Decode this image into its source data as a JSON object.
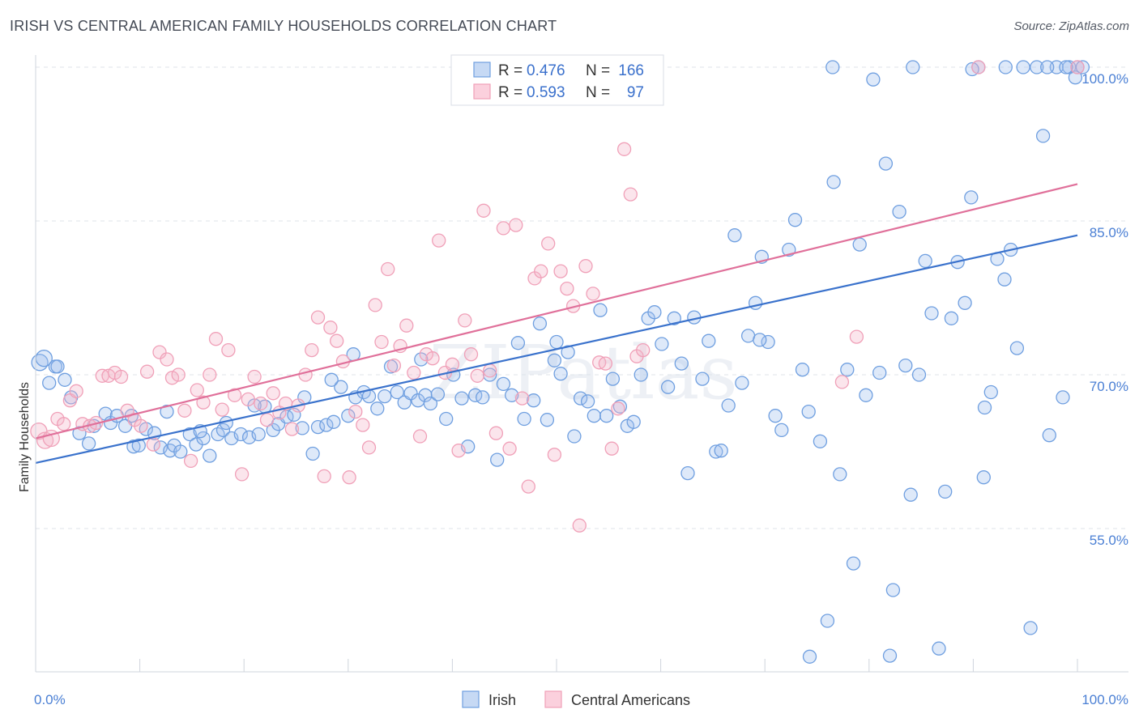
{
  "title": "IRISH VS CENTRAL AMERICAN FAMILY HOUSEHOLDS CORRELATION CHART",
  "source": "Source: ZipAtlas.com",
  "watermark": "ZIPatlas",
  "chart_data": {
    "type": "scatter",
    "ylabel": "Family Households",
    "xlim": [
      0,
      100
    ],
    "ylim": [
      40,
      102
    ],
    "x_ticks": [
      "0.0%",
      "100.0%"
    ],
    "y_ticks": [
      {
        "value": 100,
        "label": "100.0%"
      },
      {
        "value": 85,
        "label": "85.0%"
      },
      {
        "value": 70,
        "label": "70.0%"
      },
      {
        "value": 55,
        "label": "55.0%"
      }
    ],
    "legend_rows": [
      {
        "r_label": "R =",
        "r": "0.476",
        "n_label": "N =",
        "n": "166"
      },
      {
        "r_label": "R =",
        "r": "0.593",
        "n_label": "N =",
        "n": "97"
      }
    ],
    "series": [
      {
        "name": "Irish",
        "color": "#6f9fe0",
        "line_color": "#3a72cc",
        "r": 0.476,
        "n": 166,
        "trend": {
          "x": [
            0,
            100
          ],
          "y": [
            61.4,
            83.6
          ]
        },
        "points": [
          [
            0.4,
            71.2
          ],
          [
            0.8,
            71.6
          ],
          [
            1.3,
            69.2
          ],
          [
            1.9,
            70.8
          ],
          [
            2.1,
            70.8
          ],
          [
            2.8,
            69.5
          ],
          [
            3.4,
            67.8
          ],
          [
            4.2,
            64.3
          ],
          [
            5.1,
            63.3
          ],
          [
            5.6,
            65.0
          ],
          [
            6.7,
            66.2
          ],
          [
            7.2,
            65.3
          ],
          [
            7.8,
            66.0
          ],
          [
            8.6,
            65.0
          ],
          [
            9.4,
            63.0
          ],
          [
            9.9,
            63.1
          ],
          [
            10.6,
            64.7
          ],
          [
            11.4,
            64.3
          ],
          [
            12.0,
            62.9
          ],
          [
            12.9,
            62.6
          ],
          [
            13.3,
            63.1
          ],
          [
            13.9,
            62.5
          ],
          [
            14.8,
            64.2
          ],
          [
            15.4,
            63.2
          ],
          [
            16.1,
            63.8
          ],
          [
            16.7,
            62.1
          ],
          [
            17.5,
            64.2
          ],
          [
            18.0,
            64.6
          ],
          [
            18.8,
            63.8
          ],
          [
            19.7,
            64.2
          ],
          [
            20.5,
            63.9
          ],
          [
            21.4,
            64.2
          ],
          [
            22.0,
            66.9
          ],
          [
            22.8,
            64.6
          ],
          [
            23.3,
            65.2
          ],
          [
            24.1,
            65.9
          ],
          [
            24.8,
            66.1
          ],
          [
            25.6,
            64.8
          ],
          [
            26.6,
            62.3
          ],
          [
            27.1,
            64.9
          ],
          [
            27.9,
            65.1
          ],
          [
            28.6,
            65.4
          ],
          [
            29.3,
            68.8
          ],
          [
            30.0,
            66.0
          ],
          [
            30.7,
            67.8
          ],
          [
            31.5,
            68.3
          ],
          [
            32.0,
            67.9
          ],
          [
            32.8,
            66.7
          ],
          [
            33.5,
            67.9
          ],
          [
            34.1,
            70.8
          ],
          [
            34.7,
            68.3
          ],
          [
            35.4,
            67.3
          ],
          [
            36.0,
            68.2
          ],
          [
            36.7,
            67.5
          ],
          [
            37.4,
            68.0
          ],
          [
            37.9,
            67.2
          ],
          [
            38.6,
            68.1
          ],
          [
            39.4,
            65.7
          ],
          [
            40.1,
            70.0
          ],
          [
            40.9,
            67.7
          ],
          [
            41.5,
            63.0
          ],
          [
            42.2,
            68.0
          ],
          [
            42.9,
            67.8
          ],
          [
            43.6,
            70.0
          ],
          [
            44.3,
            61.7
          ],
          [
            44.9,
            69.1
          ],
          [
            45.7,
            68.0
          ],
          [
            46.3,
            73.1
          ],
          [
            46.9,
            65.7
          ],
          [
            47.8,
            67.5
          ],
          [
            48.4,
            75.0
          ],
          [
            49.1,
            65.6
          ],
          [
            49.8,
            71.4
          ],
          [
            50.4,
            70.1
          ],
          [
            51.1,
            72.2
          ],
          [
            51.7,
            64.0
          ],
          [
            52.3,
            67.7
          ],
          [
            53.0,
            67.4
          ],
          [
            53.6,
            66.0
          ],
          [
            54.2,
            76.3
          ],
          [
            54.8,
            66.0
          ],
          [
            55.4,
            69.6
          ],
          [
            56.1,
            66.9
          ],
          [
            56.8,
            65.0
          ],
          [
            57.4,
            65.4
          ],
          [
            58.1,
            70.0
          ],
          [
            58.8,
            75.5
          ],
          [
            59.4,
            76.1
          ],
          [
            60.1,
            73.0
          ],
          [
            60.7,
            68.8
          ],
          [
            61.3,
            75.5
          ],
          [
            62.0,
            71.1
          ],
          [
            62.6,
            60.4
          ],
          [
            63.2,
            75.6
          ],
          [
            64.0,
            69.6
          ],
          [
            64.6,
            73.3
          ],
          [
            65.3,
            62.5
          ],
          [
            65.8,
            62.6
          ],
          [
            66.5,
            67.0
          ],
          [
            67.1,
            83.6
          ],
          [
            67.8,
            69.2
          ],
          [
            68.4,
            73.8
          ],
          [
            69.1,
            77.0
          ],
          [
            69.7,
            81.5
          ],
          [
            70.3,
            73.2
          ],
          [
            71.0,
            66.0
          ],
          [
            71.6,
            64.6
          ],
          [
            72.3,
            82.2
          ],
          [
            72.9,
            85.1
          ],
          [
            73.6,
            70.5
          ],
          [
            74.2,
            66.4
          ],
          [
            75.3,
            63.5
          ],
          [
            76.0,
            46.0
          ],
          [
            76.6,
            88.8
          ],
          [
            77.2,
            60.3
          ],
          [
            77.9,
            70.5
          ],
          [
            78.5,
            51.6
          ],
          [
            79.1,
            82.7
          ],
          [
            79.7,
            68.0
          ],
          [
            80.4,
            98.8
          ],
          [
            81.0,
            70.2
          ],
          [
            81.6,
            90.6
          ],
          [
            82.3,
            49.0
          ],
          [
            82.9,
            85.9
          ],
          [
            83.5,
            70.9
          ],
          [
            84.2,
            100.0
          ],
          [
            84.8,
            70.0
          ],
          [
            85.4,
            81.1
          ],
          [
            86.0,
            76.0
          ],
          [
            86.7,
            43.3
          ],
          [
            87.3,
            58.6
          ],
          [
            87.9,
            75.5
          ],
          [
            88.5,
            81.0
          ],
          [
            89.2,
            77.0
          ],
          [
            89.8,
            87.3
          ],
          [
            90.5,
            100.0
          ],
          [
            91.1,
            66.8
          ],
          [
            91.7,
            68.3
          ],
          [
            92.3,
            81.3
          ],
          [
            93.0,
            79.3
          ],
          [
            93.6,
            82.2
          ],
          [
            94.2,
            72.6
          ],
          [
            94.8,
            100.0
          ],
          [
            95.5,
            45.3
          ],
          [
            96.1,
            100.0
          ],
          [
            96.7,
            93.3
          ],
          [
            97.3,
            64.1
          ],
          [
            98.0,
            100.0
          ],
          [
            98.6,
            67.8
          ],
          [
            99.2,
            100.0
          ],
          [
            99.8,
            99.0
          ],
          [
            76.5,
            100.0
          ],
          [
            100.0,
            100.0
          ],
          [
            89.9,
            99.8
          ],
          [
            93.1,
            100.0
          ],
          [
            97.1,
            100.0
          ],
          [
            98.9,
            100.0
          ],
          [
            100.5,
            100.0
          ],
          [
            74.3,
            42.5
          ],
          [
            82.0,
            42.6
          ],
          [
            84.0,
            58.3
          ],
          [
            91.0,
            60.0
          ],
          [
            69.5,
            73.4
          ],
          [
            50.0,
            73.2
          ],
          [
            37.0,
            71.5
          ],
          [
            30.5,
            72.0
          ],
          [
            28.4,
            69.5
          ],
          [
            25.8,
            67.8
          ],
          [
            21.0,
            67.0
          ],
          [
            18.3,
            65.3
          ],
          [
            15.8,
            64.5
          ],
          [
            12.6,
            66.4
          ],
          [
            9.2,
            66.0
          ]
        ]
      },
      {
        "name": "Central Americans",
        "color": "#f0a0b8",
        "line_color": "#e0709a",
        "r": 0.593,
        "n": 97,
        "trend": {
          "x": [
            0,
            100
          ],
          "y": [
            63.8,
            88.6
          ]
        },
        "points": [
          [
            0.3,
            64.5
          ],
          [
            0.9,
            63.6
          ],
          [
            1.5,
            63.8
          ],
          [
            2.1,
            65.7
          ],
          [
            2.7,
            65.2
          ],
          [
            3.3,
            67.5
          ],
          [
            3.9,
            68.4
          ],
          [
            4.5,
            65.2
          ],
          [
            5.2,
            65.0
          ],
          [
            5.8,
            65.3
          ],
          [
            6.4,
            69.9
          ],
          [
            7.0,
            69.9
          ],
          [
            7.6,
            70.2
          ],
          [
            8.2,
            69.8
          ],
          [
            8.8,
            66.5
          ],
          [
            9.5,
            65.6
          ],
          [
            10.1,
            65.0
          ],
          [
            10.7,
            70.3
          ],
          [
            11.3,
            63.2
          ],
          [
            11.9,
            72.2
          ],
          [
            12.6,
            71.5
          ],
          [
            13.1,
            69.7
          ],
          [
            13.7,
            70.0
          ],
          [
            14.3,
            66.5
          ],
          [
            14.9,
            61.6
          ],
          [
            15.5,
            68.5
          ],
          [
            16.1,
            67.3
          ],
          [
            16.7,
            70.0
          ],
          [
            17.3,
            73.5
          ],
          [
            17.9,
            66.6
          ],
          [
            18.5,
            72.4
          ],
          [
            19.1,
            68.0
          ],
          [
            19.8,
            60.3
          ],
          [
            20.4,
            67.6
          ],
          [
            21.0,
            69.8
          ],
          [
            21.6,
            67.2
          ],
          [
            22.2,
            65.6
          ],
          [
            22.8,
            68.2
          ],
          [
            23.4,
            66.3
          ],
          [
            24.0,
            67.2
          ],
          [
            24.6,
            64.7
          ],
          [
            25.2,
            67.0
          ],
          [
            25.9,
            70.0
          ],
          [
            26.5,
            72.4
          ],
          [
            27.1,
            75.6
          ],
          [
            27.7,
            60.1
          ],
          [
            28.3,
            74.6
          ],
          [
            28.9,
            73.3
          ],
          [
            29.5,
            71.3
          ],
          [
            30.1,
            60.0
          ],
          [
            30.7,
            66.4
          ],
          [
            31.4,
            65.1
          ],
          [
            32.0,
            62.9
          ],
          [
            32.6,
            76.8
          ],
          [
            33.2,
            73.2
          ],
          [
            33.8,
            80.3
          ],
          [
            34.4,
            70.9
          ],
          [
            35.0,
            72.8
          ],
          [
            35.6,
            74.8
          ],
          [
            36.3,
            70.2
          ],
          [
            36.9,
            64.0
          ],
          [
            37.5,
            72.0
          ],
          [
            38.1,
            71.6
          ],
          [
            38.7,
            83.1
          ],
          [
            39.3,
            70.2
          ],
          [
            40.0,
            71.0
          ],
          [
            40.6,
            62.6
          ],
          [
            41.2,
            75.3
          ],
          [
            41.8,
            72.0
          ],
          [
            42.4,
            69.9
          ],
          [
            43.0,
            86.0
          ],
          [
            43.6,
            70.4
          ],
          [
            44.2,
            64.3
          ],
          [
            44.9,
            84.3
          ],
          [
            45.5,
            62.8
          ],
          [
            46.1,
            84.6
          ],
          [
            46.7,
            67.7
          ],
          [
            47.3,
            59.1
          ],
          [
            47.9,
            79.4
          ],
          [
            48.5,
            80.1
          ],
          [
            49.2,
            82.8
          ],
          [
            49.8,
            62.2
          ],
          [
            50.4,
            80.1
          ],
          [
            51.0,
            78.4
          ],
          [
            51.6,
            76.7
          ],
          [
            52.2,
            55.3
          ],
          [
            52.8,
            80.6
          ],
          [
            53.5,
            77.9
          ],
          [
            54.1,
            71.2
          ],
          [
            54.7,
            71.1
          ],
          [
            55.3,
            62.8
          ],
          [
            55.9,
            66.7
          ],
          [
            56.5,
            92.0
          ],
          [
            57.1,
            87.6
          ],
          [
            57.7,
            71.8
          ],
          [
            58.3,
            72.4
          ],
          [
            77.4,
            69.3
          ],
          [
            78.8,
            73.7
          ],
          [
            90.5,
            100.0
          ],
          [
            100.0,
            100.0
          ]
        ]
      }
    ]
  }
}
